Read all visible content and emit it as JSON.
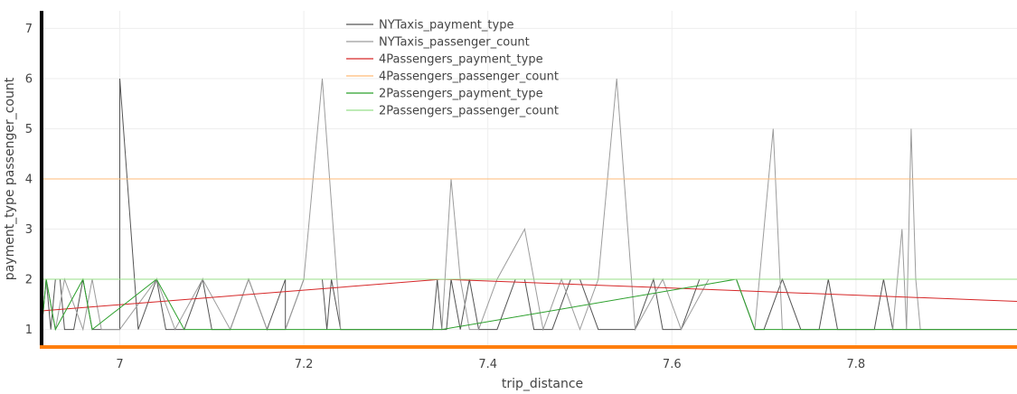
{
  "chart_data": {
    "type": "line",
    "xlabel": "trip_distance",
    "ylabel": "payment_type passenger_count",
    "xlim": [
      6.915,
      7.975
    ],
    "ylim": [
      0.65,
      7.35
    ],
    "x_ticks": [
      7,
      7.2,
      7.4,
      7.6,
      7.8
    ],
    "y_ticks": [
      1,
      2,
      3,
      4,
      5,
      6,
      7
    ],
    "grid": true,
    "legend_position": "top-center",
    "axis_colors": {
      "y_axis": "#000000",
      "x_axis": "#ff7f0e"
    },
    "series": [
      {
        "name": "NYTaxis_payment_type",
        "color": "#555555",
        "x": [
          6.915,
          6.92,
          6.925,
          6.93,
          6.935,
          6.94,
          6.95,
          6.96,
          6.97,
          6.98,
          7.0,
          7.0,
          7.02,
          7.04,
          7.05,
          7.07,
          7.09,
          7.1,
          7.12,
          7.14,
          7.16,
          7.18,
          7.18,
          7.2,
          7.22,
          7.225,
          7.23,
          7.24,
          7.34,
          7.345,
          7.35,
          7.355,
          7.36,
          7.37,
          7.38,
          7.39,
          7.41,
          7.43,
          7.44,
          7.45,
          7.47,
          7.49,
          7.5,
          7.52,
          7.53,
          7.54,
          7.56,
          7.58,
          7.59,
          7.61,
          7.63,
          7.65,
          7.67,
          7.69,
          7.7,
          7.72,
          7.74,
          7.76,
          7.77,
          7.78,
          7.8,
          7.82,
          7.83,
          7.84,
          7.86,
          7.87,
          7.975
        ],
        "values": [
          1,
          2,
          1,
          2,
          2,
          1,
          1,
          2,
          1,
          1,
          1,
          6,
          1,
          2,
          1,
          1,
          2,
          1,
          1,
          2,
          1,
          2,
          1,
          2,
          2,
          1,
          2,
          1,
          1,
          2,
          1,
          1,
          2,
          1,
          2,
          1,
          1,
          2,
          2,
          1,
          1,
          2,
          2,
          1,
          1,
          1,
          1,
          2,
          1,
          1,
          2,
          2,
          2,
          1,
          1,
          2,
          1,
          1,
          2,
          1,
          1,
          1,
          2,
          1,
          1,
          1,
          1
        ]
      },
      {
        "name": "NYTaxis_passenger_count",
        "color": "#9c9c9c",
        "x": [
          6.915,
          6.92,
          6.93,
          6.94,
          6.96,
          6.97,
          6.98,
          7.0,
          7.04,
          7.06,
          7.09,
          7.12,
          7.14,
          7.16,
          7.18,
          7.2,
          7.22,
          7.24,
          7.34,
          7.35,
          7.36,
          7.37,
          7.38,
          7.39,
          7.41,
          7.44,
          7.46,
          7.48,
          7.5,
          7.52,
          7.54,
          7.56,
          7.59,
          7.61,
          7.64,
          7.67,
          7.69,
          7.71,
          7.72,
          7.76,
          7.8,
          7.84,
          7.85,
          7.855,
          7.86,
          7.865,
          7.87,
          7.975
        ],
        "values": [
          1,
          2,
          1,
          2,
          1,
          2,
          1,
          1,
          2,
          1,
          2,
          1,
          2,
          1,
          1,
          2,
          6,
          1,
          1,
          1,
          4,
          2,
          1,
          1,
          2,
          3,
          1,
          2,
          1,
          2,
          6,
          1,
          2,
          1,
          2,
          2,
          1,
          5,
          1,
          1,
          1,
          1,
          3,
          1,
          5,
          2,
          1,
          1
        ]
      },
      {
        "name": "4Passengers_payment_type",
        "color": "#d62728",
        "x": [
          6.915,
          7.35,
          7.975
        ],
        "values": [
          1.37,
          2.0,
          1.56
        ]
      },
      {
        "name": "4Passengers_passenger_count",
        "color": "#ffbb78",
        "x": [
          6.915,
          7.975
        ],
        "values": [
          4,
          4
        ]
      },
      {
        "name": "2Passengers_payment_type",
        "color": "#2ca02c",
        "x": [
          6.915,
          6.92,
          6.93,
          6.96,
          6.97,
          7.04,
          7.07,
          7.09,
          7.12,
          7.35,
          7.67,
          7.69,
          7.7,
          7.975
        ],
        "values": [
          1,
          2,
          1,
          2,
          1,
          2,
          1,
          1,
          1,
          1,
          2,
          1,
          1,
          1
        ]
      },
      {
        "name": "2Passengers_passenger_count",
        "color": "#98df8a",
        "x": [
          6.915,
          7.975
        ],
        "values": [
          2,
          2
        ]
      }
    ]
  }
}
